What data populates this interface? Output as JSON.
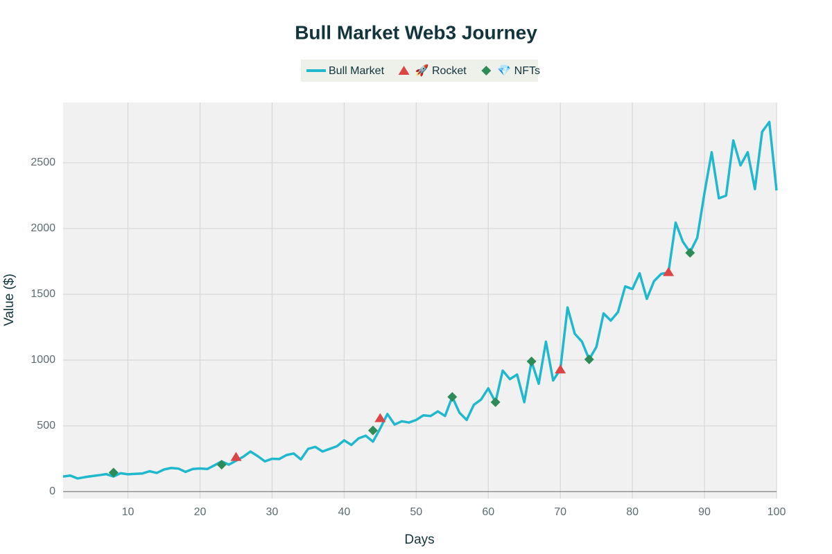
{
  "chart_data": {
    "type": "line",
    "title": "Bull Market Web3 Journey",
    "x_label": "Days",
    "y_label": "Value ($)",
    "xlim": [
      1,
      100
    ],
    "ylim": [
      -53,
      2958
    ],
    "xticks": [
      10,
      20,
      30,
      40,
      50,
      60,
      70,
      80,
      90,
      100
    ],
    "yticks": [
      0,
      500,
      1000,
      1500,
      2000,
      2500
    ],
    "grid": true,
    "legend": "top",
    "series": [
      {
        "name": "Bull Market",
        "color": "#1fb8cd",
        "mode": "line",
        "x": [
          1,
          2,
          3,
          4,
          5,
          6,
          7,
          8,
          9,
          10,
          11,
          12,
          13,
          14,
          15,
          16,
          17,
          18,
          19,
          20,
          21,
          22,
          23,
          24,
          25,
          26,
          27,
          28,
          29,
          30,
          31,
          32,
          33,
          34,
          35,
          36,
          37,
          38,
          39,
          40,
          41,
          42,
          43,
          44,
          45,
          46,
          47,
          48,
          49,
          50,
          51,
          52,
          53,
          54,
          55,
          56,
          57,
          58,
          59,
          60,
          61,
          62,
          63,
          64,
          65,
          66,
          67,
          68,
          69,
          70,
          71,
          72,
          73,
          74,
          75,
          76,
          77,
          78,
          79,
          80,
          81,
          82,
          83,
          84,
          85,
          86,
          87,
          88,
          89,
          90,
          91,
          92,
          93,
          94,
          95,
          96,
          97,
          98,
          99,
          100
        ],
        "values": [
          115,
          122,
          100,
          110,
          118,
          125,
          133,
          115,
          140,
          132,
          135,
          138,
          155,
          142,
          168,
          180,
          175,
          150,
          172,
          176,
          172,
          200,
          230,
          205,
          235,
          265,
          305,
          270,
          230,
          250,
          248,
          278,
          290,
          245,
          325,
          340,
          305,
          325,
          345,
          390,
          355,
          405,
          425,
          380,
          480,
          590,
          510,
          535,
          525,
          545,
          580,
          575,
          610,
          575,
          720,
          600,
          545,
          660,
          700,
          785,
          680,
          920,
          855,
          890,
          680,
          990,
          820,
          1140,
          845,
          930,
          1400,
          1200,
          1140,
          1005,
          1100,
          1355,
          1300,
          1365,
          1560,
          1540,
          1660,
          1465,
          1600,
          1655,
          1665,
          2045,
          1900,
          1820,
          1930,
          2270,
          2580,
          2230,
          2250,
          2670,
          2480,
          2580,
          2300,
          2735,
          2810,
          2290
        ]
      },
      {
        "name": "🚀 Rocket",
        "color": "#db4545",
        "mode": "triangle",
        "x": [
          25,
          45,
          70,
          85
        ],
        "values": [
          265,
          560,
          930,
          1670
        ]
      },
      {
        "name": "💎 NFTs",
        "color": "#2e8b57",
        "mode": "diamond",
        "x": [
          8,
          23,
          44,
          55,
          61,
          66,
          74,
          88
        ],
        "values": [
          145,
          205,
          465,
          720,
          680,
          990,
          1005,
          1815
        ]
      }
    ]
  }
}
